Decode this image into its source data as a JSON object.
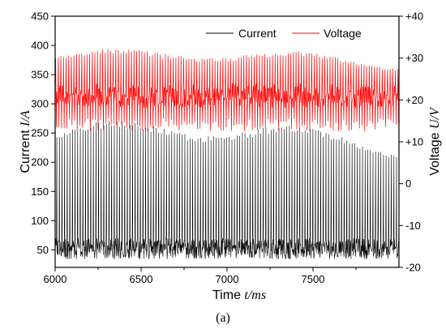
{
  "chart_data": {
    "type": "line",
    "xlabel": {
      "name": "Time ",
      "unit": "t/ms"
    },
    "ylabel_left": {
      "name": "Current ",
      "unit": "I/A"
    },
    "ylabel_right": {
      "name": "Voltage ",
      "unit": "U/V"
    },
    "caption": "(a)",
    "x_range": [
      6000,
      8000
    ],
    "y_left_range": [
      20,
      450
    ],
    "y_right_range": [
      -20,
      40
    ],
    "x_ticks": [
      "6000",
      "6500",
      "7000",
      "7500"
    ],
    "y_left_ticks": [
      "50",
      "100",
      "150",
      "200",
      "250",
      "300",
      "350",
      "400",
      "450"
    ],
    "y_right_ticks": [
      "-20",
      "-10",
      "0",
      "+10",
      "+20",
      "+30",
      "+40"
    ],
    "legend": {
      "placement": "top-right",
      "entries": [
        "Current",
        "Voltage"
      ]
    },
    "series": [
      {
        "name": "Current",
        "axis": "left",
        "color": "#000000",
        "approx": "short-circuit pulses, about 15 ms period",
        "baseline": 52,
        "base_noise": 18,
        "pulse_peak_range": [
          175,
          280
        ]
      },
      {
        "name": "Voltage",
        "axis": "right",
        "color": "#ff0000",
        "approx": "arc voltage oscillation, 12 to 33 V",
        "mean": 20,
        "low": 12.5,
        "high_range": [
          25,
          33
        ]
      }
    ]
  }
}
